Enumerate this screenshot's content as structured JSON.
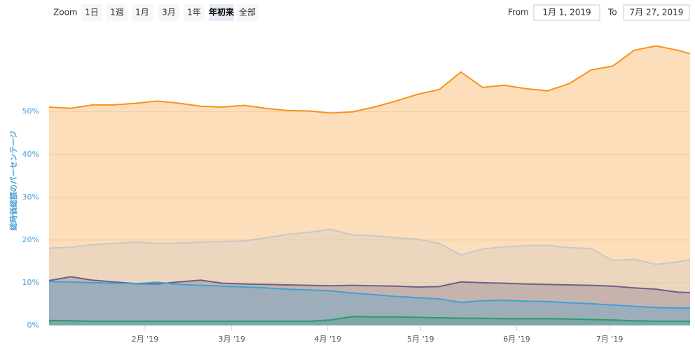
{
  "range_selector": {
    "zoom_label": "Zoom",
    "buttons": [
      "1日",
      "1週",
      "1月",
      "3月",
      "1年",
      "年初来",
      "全部"
    ],
    "selected_index": 5,
    "from_label": "From",
    "from": "1月 1, 2019",
    "to_label": "To",
    "to": "7月 27, 2019"
  },
  "chart_data": {
    "type": "area",
    "y_axis_label": "総時価総額のパーセンテージ",
    "x": [
      "2019-01-01",
      "2019-01-08",
      "2019-01-15",
      "2019-01-22",
      "2019-01-29",
      "2019-02-05",
      "2019-02-12",
      "2019-02-19",
      "2019-02-26",
      "2019-03-05",
      "2019-03-12",
      "2019-03-19",
      "2019-03-26",
      "2019-04-02",
      "2019-04-09",
      "2019-04-16",
      "2019-04-23",
      "2019-04-30",
      "2019-05-07",
      "2019-05-14",
      "2019-05-21",
      "2019-05-28",
      "2019-06-04",
      "2019-06-11",
      "2019-06-18",
      "2019-06-25",
      "2019-07-02",
      "2019-07-09",
      "2019-07-16",
      "2019-07-23",
      "2019-07-27"
    ],
    "series": [
      {
        "color": "#f7931a",
        "values": [
          51.1,
          50.8,
          51.6,
          51.6,
          52.0,
          52.5,
          52.0,
          51.3,
          51.1,
          51.5,
          50.8,
          50.3,
          50.2,
          49.7,
          50.0,
          51.1,
          52.5,
          54.1,
          55.2,
          59.3,
          55.7,
          56.2,
          55.4,
          54.9,
          56.6,
          59.8,
          60.7,
          64.4,
          65.4,
          64.4,
          63.6
        ]
      },
      {
        "color": "#c8c8c8",
        "values": [
          18.1,
          18.3,
          18.9,
          19.2,
          19.5,
          19.2,
          19.3,
          19.5,
          19.6,
          19.8,
          20.5,
          21.3,
          21.8,
          22.5,
          21.2,
          21.0,
          20.5,
          20.2,
          19.2,
          16.5,
          17.9,
          18.4,
          18.7,
          18.8,
          18.2,
          18.0,
          15.2,
          15.5,
          14.3,
          14.9,
          15.4
        ]
      },
      {
        "color": "#6f5f8a",
        "values": [
          10.5,
          11.4,
          10.6,
          10.2,
          9.8,
          9.7,
          10.2,
          10.6,
          9.9,
          9.7,
          9.6,
          9.5,
          9.4,
          9.3,
          9.4,
          9.3,
          9.2,
          9.0,
          9.1,
          10.2,
          10.0,
          9.9,
          9.7,
          9.6,
          9.5,
          9.4,
          9.2,
          8.8,
          8.5,
          7.8,
          7.7
        ]
      },
      {
        "color": "#3ba3d6",
        "values": [
          10.3,
          10.2,
          10.0,
          9.9,
          9.8,
          10.1,
          9.6,
          9.4,
          9.2,
          9.0,
          8.8,
          8.5,
          8.3,
          8.1,
          7.6,
          7.2,
          6.8,
          6.5,
          6.2,
          5.4,
          5.8,
          5.9,
          5.7,
          5.6,
          5.3,
          5.1,
          4.8,
          4.5,
          4.2,
          4.1,
          4.1
        ]
      },
      {
        "color": "#2e9a6e",
        "values": [
          1.2,
          1.1,
          1.0,
          1.0,
          1.0,
          1.0,
          1.0,
          1.0,
          1.0,
          1.0,
          1.0,
          1.0,
          1.0,
          1.3,
          2.1,
          2.0,
          2.0,
          1.9,
          1.8,
          1.7,
          1.7,
          1.6,
          1.6,
          1.6,
          1.5,
          1.4,
          1.3,
          1.1,
          1.0,
          1.0,
          1.0
        ]
      }
    ],
    "xlim": [
      "2019-01-01",
      "2019-07-27"
    ],
    "xticks": [
      {
        "value": "2019-02-01",
        "label": "2月 '19"
      },
      {
        "value": "2019-03-01",
        "label": "3月 '19"
      },
      {
        "value": "2019-04-01",
        "label": "4月 '19"
      },
      {
        "value": "2019-05-01",
        "label": "5月 '19"
      },
      {
        "value": "2019-06-01",
        "label": "6月 '19"
      },
      {
        "value": "2019-07-01",
        "label": "7月 '19"
      }
    ],
    "ylim": [
      0,
      66
    ],
    "yticks": [
      {
        "value": 0,
        "label": "0%"
      },
      {
        "value": 10,
        "label": "10%"
      },
      {
        "value": 20,
        "label": "20%"
      },
      {
        "value": 30,
        "label": "30%"
      },
      {
        "value": 40,
        "label": "40%"
      },
      {
        "value": 50,
        "label": "50%"
      }
    ],
    "grid": true,
    "fill_opacity": 0.3
  }
}
